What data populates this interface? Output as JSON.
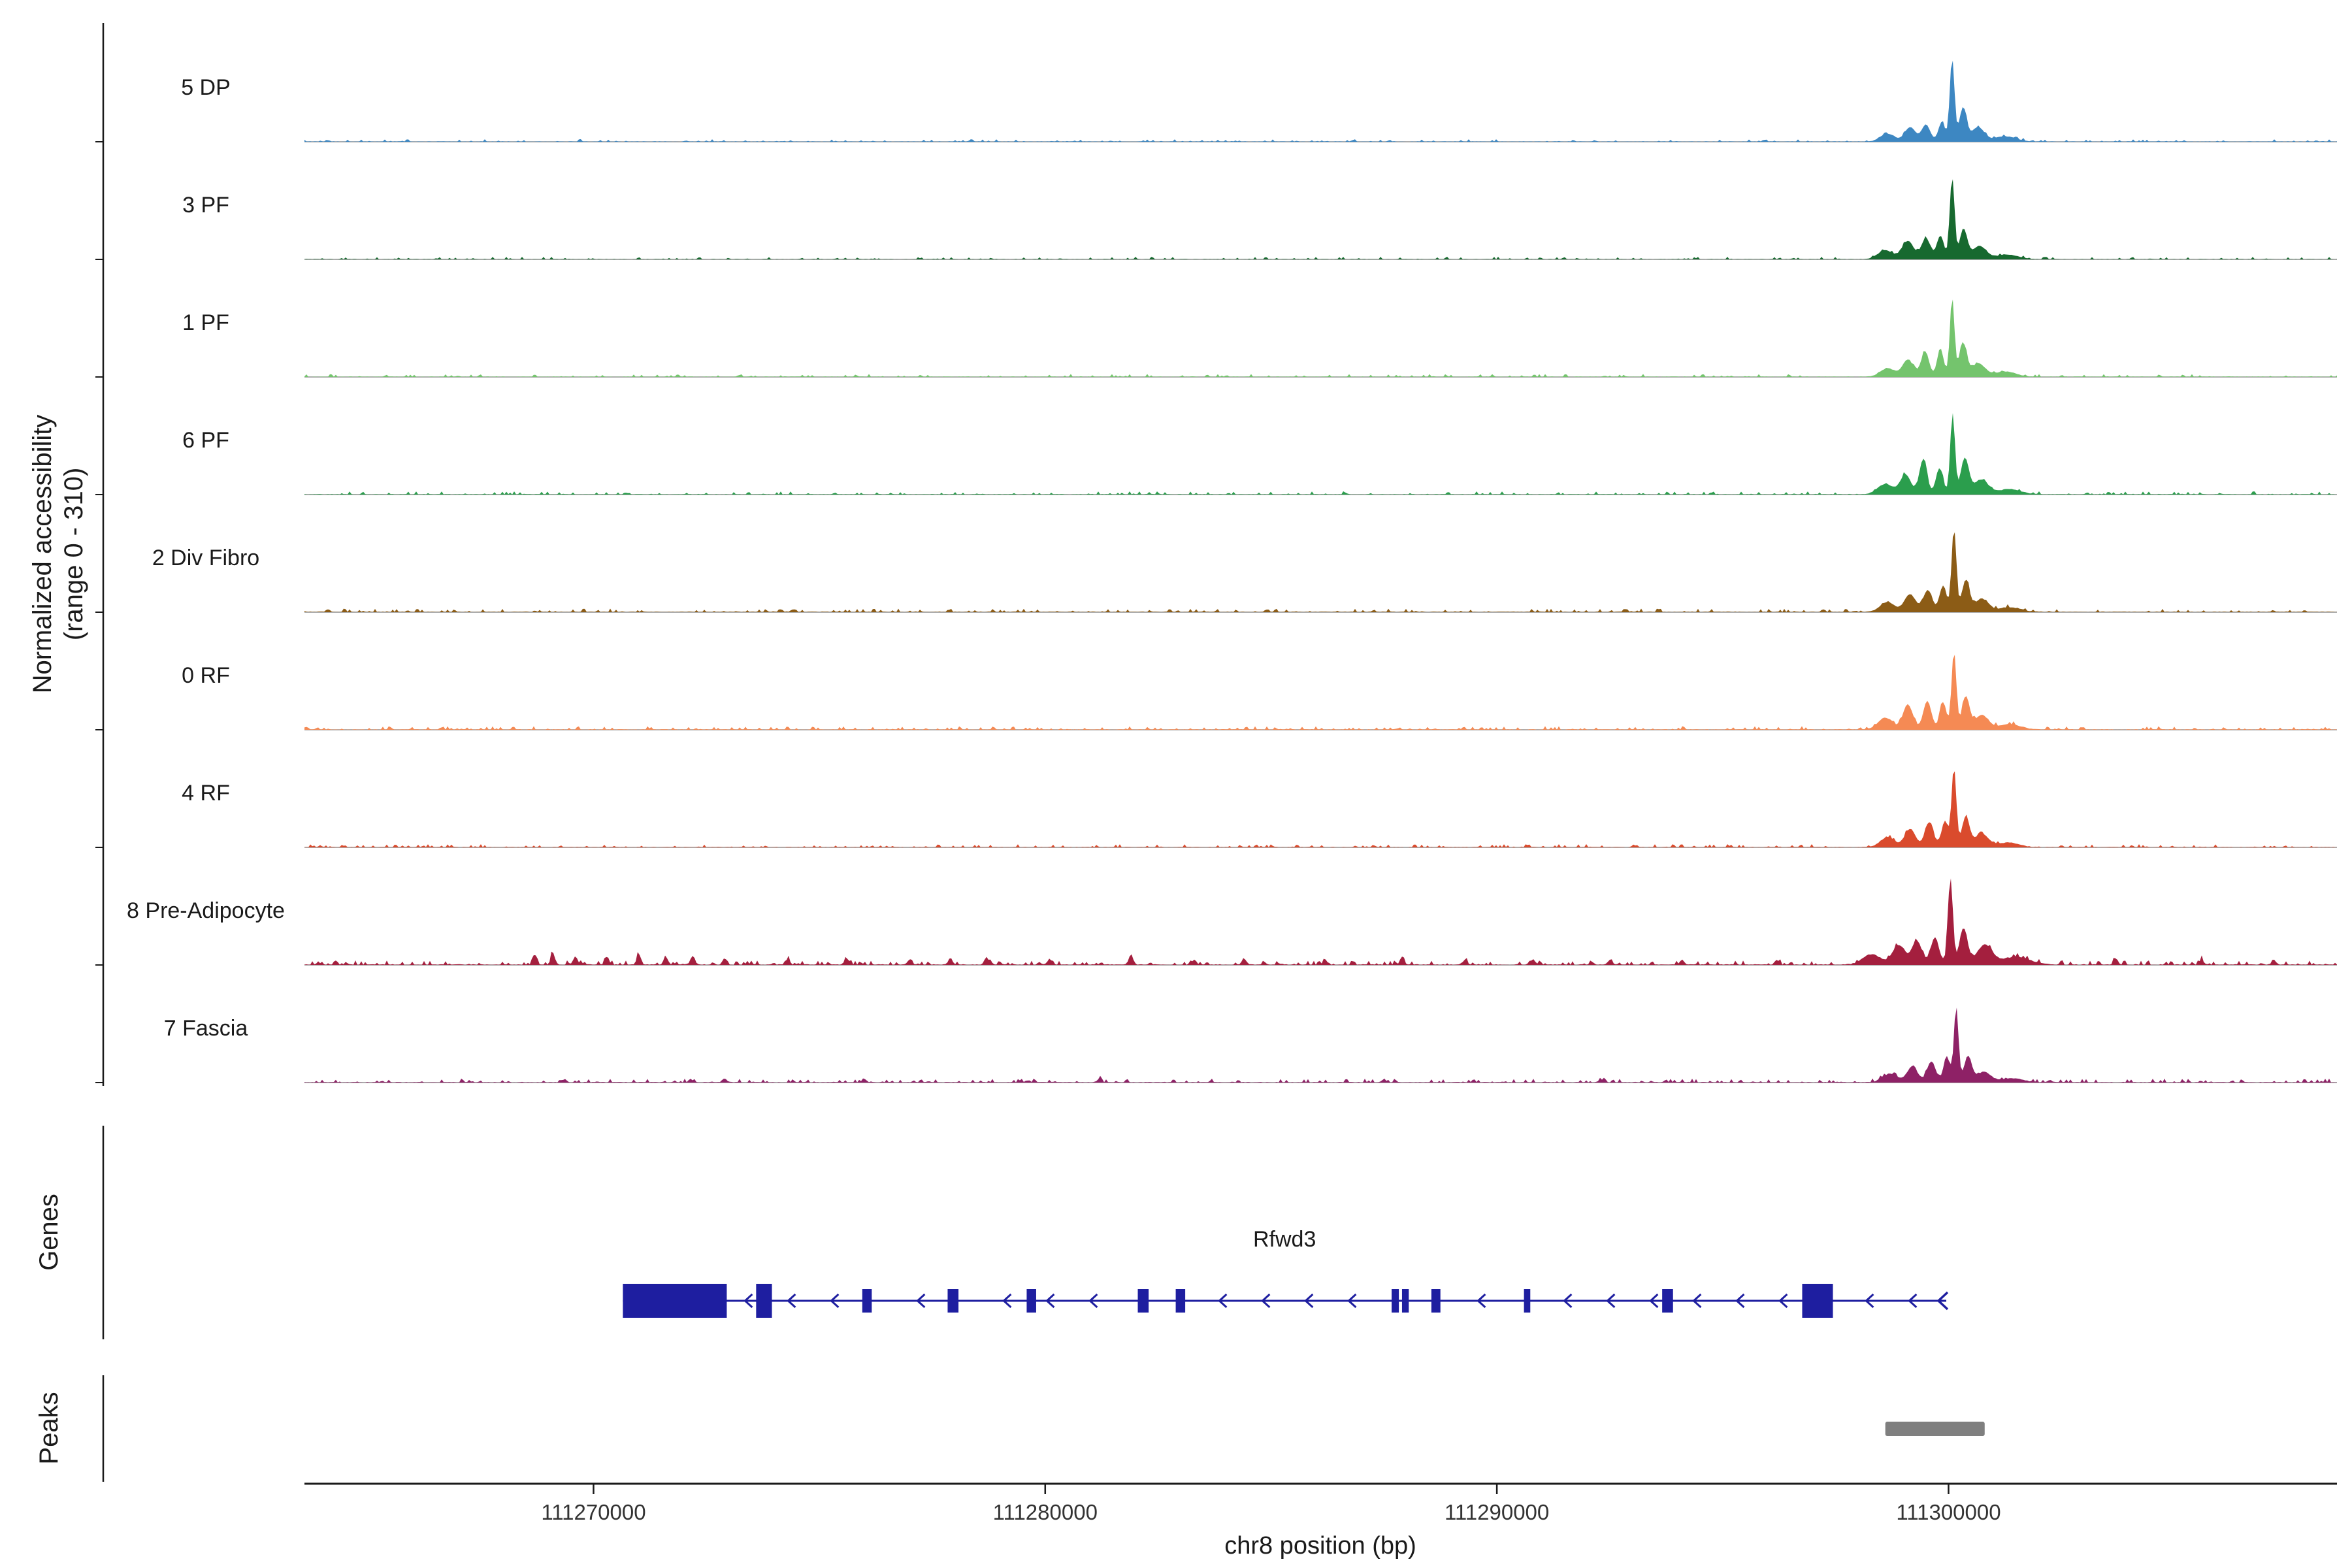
{
  "figure": {
    "y_axis_label_line1": "Normalized accessibility",
    "y_axis_label_line2": "(range 0 - 310)",
    "genes_panel_label": "Genes",
    "peaks_panel_label": "Peaks",
    "x_axis_label": "chr8 position (bp)"
  },
  "chart_data": {
    "type": "area",
    "title": "",
    "x_range": [
      111263600,
      111308600
    ],
    "y_range": [
      0,
      310
    ],
    "x_ticks": [
      {
        "value": 111270000,
        "label": "111270000"
      },
      {
        "value": 111280000,
        "label": "111280000"
      },
      {
        "value": 111290000,
        "label": "111290000"
      },
      {
        "value": 111300000,
        "label": "111300000"
      }
    ],
    "tracks": [
      {
        "label": "5 DP",
        "color": "#3d87c2",
        "seed": 101,
        "noise_amp": 4,
        "noise_density": 0.2,
        "bumps": [
          [
            111298650,
            160,
            12
          ],
          [
            111299150,
            120,
            22
          ],
          [
            111299500,
            95,
            26
          ],
          [
            111299850,
            75,
            30
          ],
          [
            111300080,
            52,
            128
          ],
          [
            111300320,
            80,
            52
          ],
          [
            111300650,
            140,
            22
          ],
          [
            111301250,
            240,
            8
          ]
        ]
      },
      {
        "label": "3 PF",
        "color": "#17692f",
        "seed": 102,
        "noise_amp": 4,
        "noise_density": 0.2,
        "bumps": [
          [
            111298600,
            160,
            14
          ],
          [
            111299100,
            130,
            28
          ],
          [
            111299500,
            100,
            32
          ],
          [
            111299820,
            80,
            36
          ],
          [
            111300080,
            52,
            126
          ],
          [
            111300330,
            85,
            46
          ],
          [
            111300680,
            150,
            20
          ],
          [
            111301300,
            250,
            7
          ]
        ]
      },
      {
        "label": "1 PF",
        "color": "#74c46d",
        "seed": 103,
        "noise_amp": 4.5,
        "noise_density": 0.22,
        "bumps": [
          [
            111298650,
            160,
            13
          ],
          [
            111299100,
            120,
            26
          ],
          [
            111299480,
            90,
            38
          ],
          [
            111299820,
            70,
            44
          ],
          [
            111300080,
            50,
            122
          ],
          [
            111300320,
            85,
            50
          ],
          [
            111300660,
            150,
            20
          ],
          [
            111301250,
            240,
            8
          ]
        ]
      },
      {
        "label": "6 PF",
        "color": "#2b9e4d",
        "seed": 104,
        "noise_amp": 5,
        "noise_density": 0.24,
        "bumps": [
          [
            111298600,
            170,
            16
          ],
          [
            111299050,
            120,
            30
          ],
          [
            111299440,
            85,
            54
          ],
          [
            111299800,
            80,
            40
          ],
          [
            111300090,
            52,
            124
          ],
          [
            111300360,
            90,
            55
          ],
          [
            111300720,
            160,
            22
          ],
          [
            111301350,
            250,
            8
          ]
        ]
      },
      {
        "label": "2 Div Fibro",
        "color": "#8c5c16",
        "seed": 105,
        "noise_amp": 5.5,
        "noise_density": 0.26,
        "bumps": [
          [
            111298650,
            160,
            15
          ],
          [
            111299150,
            125,
            27
          ],
          [
            111299540,
            100,
            33
          ],
          [
            111299880,
            80,
            40
          ],
          [
            111300120,
            52,
            128
          ],
          [
            111300380,
            85,
            48
          ],
          [
            111300730,
            150,
            20
          ],
          [
            111301350,
            250,
            7
          ]
        ]
      },
      {
        "label": "0 RF",
        "color": "#f58a54",
        "seed": 106,
        "noise_amp": 5.5,
        "noise_density": 0.26,
        "bumps": [
          [
            111298600,
            160,
            18
          ],
          [
            111299100,
            110,
            38
          ],
          [
            111299530,
            90,
            44
          ],
          [
            111299880,
            75,
            42
          ],
          [
            111300120,
            52,
            120
          ],
          [
            111300380,
            85,
            50
          ],
          [
            111300730,
            150,
            22
          ],
          [
            111301350,
            250,
            8
          ]
        ]
      },
      {
        "label": "4 RF",
        "color": "#da4b2d",
        "seed": 107,
        "noise_amp": 5,
        "noise_density": 0.24,
        "bumps": [
          [
            111298650,
            160,
            15
          ],
          [
            111299150,
            120,
            28
          ],
          [
            111299570,
            95,
            38
          ],
          [
            111299920,
            75,
            40
          ],
          [
            111300120,
            52,
            122
          ],
          [
            111300380,
            85,
            46
          ],
          [
            111300730,
            150,
            20
          ],
          [
            111301320,
            240,
            7
          ]
        ]
      },
      {
        "label": "8 Pre-Adipocyte",
        "color": "#a41f3e",
        "seed": 108,
        "noise_amp": 7,
        "noise_density": 0.3,
        "bumps": [
          [
            111298300,
            200,
            16
          ],
          [
            111298900,
            140,
            30
          ],
          [
            111299300,
            110,
            36
          ],
          [
            111299700,
            90,
            42
          ],
          [
            111300040,
            55,
            130
          ],
          [
            111300330,
            90,
            56
          ],
          [
            111300800,
            170,
            30
          ],
          [
            111301500,
            300,
            12
          ]
        ],
        "spikes": [
          [
            111268700,
            16
          ],
          [
            111269100,
            18
          ],
          [
            111269600,
            13
          ],
          [
            111270300,
            12
          ],
          [
            111271000,
            16
          ],
          [
            111271600,
            12
          ],
          [
            111272200,
            14
          ],
          [
            111272900,
            10
          ],
          [
            111274300,
            8
          ],
          [
            111275600,
            9
          ],
          [
            111277000,
            8
          ],
          [
            111277900,
            11
          ],
          [
            111278700,
            12
          ],
          [
            111280100,
            9
          ],
          [
            111281900,
            16
          ],
          [
            111283300,
            8
          ],
          [
            111284400,
            10
          ],
          [
            111286200,
            8
          ],
          [
            111287900,
            12
          ],
          [
            111289300,
            8
          ],
          [
            111290800,
            9
          ],
          [
            111292500,
            7
          ],
          [
            111294100,
            8
          ],
          [
            111296200,
            7
          ],
          [
            111303700,
            10
          ],
          [
            111305600,
            8
          ],
          [
            111307200,
            7
          ]
        ]
      },
      {
        "label": "7 Fascia",
        "color": "#8e2166",
        "seed": 109,
        "noise_amp": 6,
        "noise_density": 0.26,
        "bumps": [
          [
            111298700,
            160,
            13
          ],
          [
            111299200,
            120,
            24
          ],
          [
            111299620,
            95,
            32
          ],
          [
            111299960,
            70,
            40
          ],
          [
            111300170,
            50,
            116
          ],
          [
            111300430,
            85,
            40
          ],
          [
            111300780,
            150,
            16
          ],
          [
            111301400,
            250,
            6
          ]
        ],
        "spikes": [
          [
            111272900,
            6
          ],
          [
            111276000,
            5
          ],
          [
            111281200,
            6
          ],
          [
            111287500,
            5
          ],
          [
            111292300,
            5
          ]
        ]
      }
    ],
    "gene": {
      "name": "Rfwd3",
      "strand": "-",
      "start": 111270650,
      "end": 111299950,
      "color": "#1e1ea0",
      "exons": [
        {
          "start": 111270650,
          "end": 111272950,
          "tall": true
        },
        {
          "start": 111273600,
          "end": 111273950,
          "tall": true
        },
        {
          "start": 111275950,
          "end": 111276160,
          "tall": false
        },
        {
          "start": 111277840,
          "end": 111278080,
          "tall": false
        },
        {
          "start": 111279590,
          "end": 111279800,
          "tall": false
        },
        {
          "start": 111282050,
          "end": 111282290,
          "tall": false
        },
        {
          "start": 111282890,
          "end": 111283100,
          "tall": false
        },
        {
          "start": 111287670,
          "end": 111287830,
          "tall": false
        },
        {
          "start": 111287900,
          "end": 111288050,
          "tall": false
        },
        {
          "start": 111288550,
          "end": 111288750,
          "tall": false
        },
        {
          "start": 111290600,
          "end": 111290740,
          "tall": false
        },
        {
          "start": 111293660,
          "end": 111293900,
          "tall": false
        },
        {
          "start": 111296760,
          "end": 111297440,
          "tall": true
        }
      ]
    },
    "peaks": [
      {
        "start": 111298600,
        "end": 111300800,
        "color": "#7f7f7f"
      }
    ]
  }
}
